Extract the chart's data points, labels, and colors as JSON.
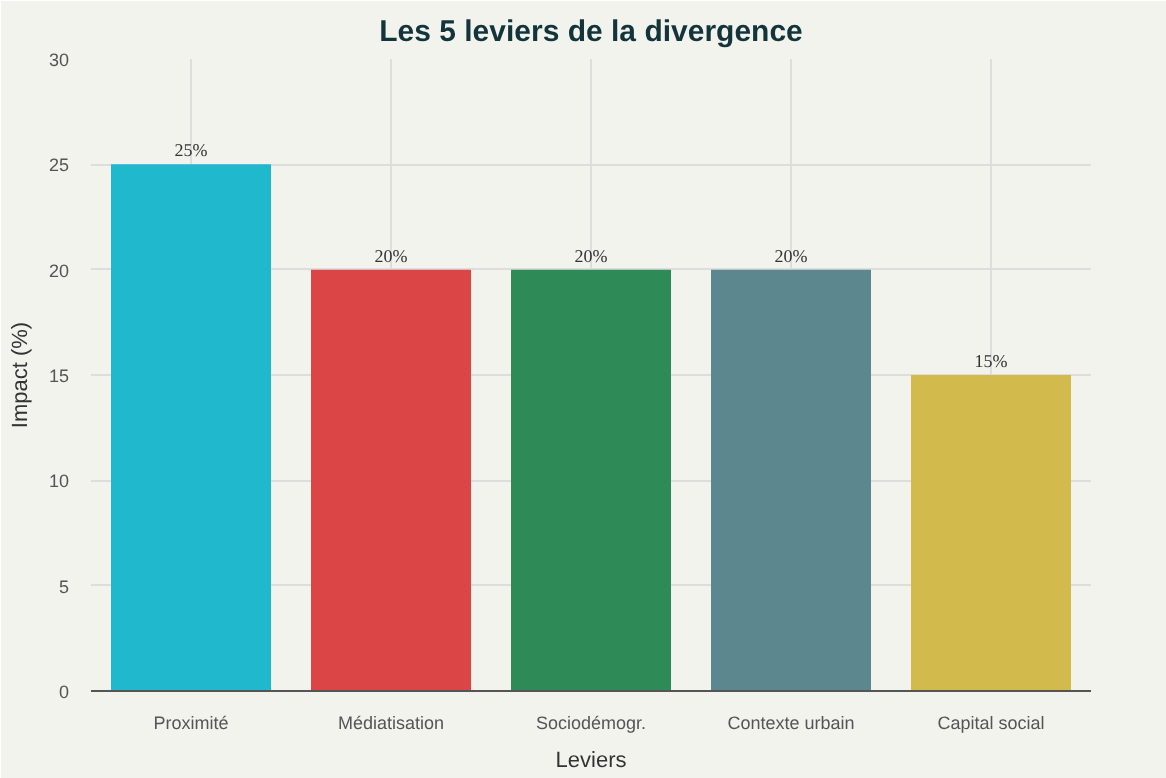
{
  "chart_data": {
    "type": "bar",
    "title": "Les 5 leviers de la divergence",
    "xlabel": "Leviers",
    "ylabel": "Impact (%)",
    "categories": [
      "Proximité",
      "Médiatisation",
      "Sociodémogr.",
      "Contexte urbain",
      "Capital social"
    ],
    "values": [
      25,
      20,
      20,
      20,
      15
    ],
    "colors": [
      "#1fb8cd",
      "#db4545",
      "#2e8b57",
      "#5d878f",
      "#d2ba4c"
    ],
    "value_labels": [
      "25%",
      "20%",
      "20%",
      "20%",
      "15%"
    ],
    "ylim": [
      0,
      30
    ],
    "yticks": [
      0,
      5,
      10,
      15,
      20,
      25,
      30
    ],
    "grid": true
  }
}
